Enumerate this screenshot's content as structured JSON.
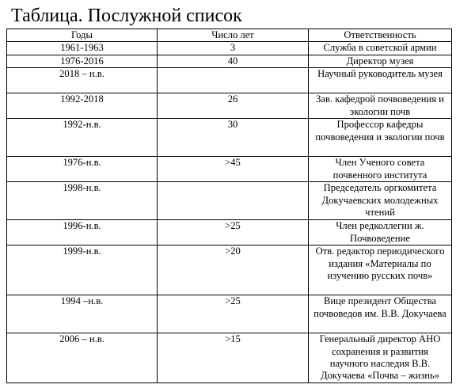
{
  "title": "Таблица. Послужной список",
  "headers": {
    "years": "Годы",
    "count": "Число лет",
    "role": "Ответственность"
  },
  "rows": [
    {
      "years": "1961-1963",
      "count": "3",
      "role": "Служба в советской армии"
    },
    {
      "years": "1976-2016",
      "count": "40",
      "role": "Директор музея"
    },
    {
      "years": "2018 – н.в.",
      "count": "",
      "role": "Научный руководитель музея"
    },
    {
      "years": "1992-2018",
      "count": "26",
      "role": "Зав. кафедрой почвоведения и экологии почв"
    },
    {
      "years": "1992-н.в.",
      "count": "30",
      "role": "Профессор кафедры почвоведения и экологии почв"
    },
    {
      "years": "1976-н.в.",
      "count": ">45",
      "role": "Член Ученого совета почвенного института"
    },
    {
      "years": "1998-н.в.",
      "count": "",
      "role": "Председатель оргкомитета Докучаевских молодежных чтений"
    },
    {
      "years": "1996-н.в.",
      "count": ">25",
      "role": "Член редколлегии ж. Почвоведение"
    },
    {
      "years": "1999-н.в.",
      "count": ">20",
      "role": "Отв. редактор периодического издания «Материалы по изучению русских почв»"
    },
    {
      "years": "1994 –н.в.",
      "count": ">25",
      "role": "Вице президент Общества почвоведов им. В.В. Докучаева"
    },
    {
      "years": "2006 – н.в.",
      "count": ">15",
      "role": "Генеральный директор АНО сохранения и развития научного наследия В.В. Докучаева «Почва – жизнь»"
    }
  ]
}
